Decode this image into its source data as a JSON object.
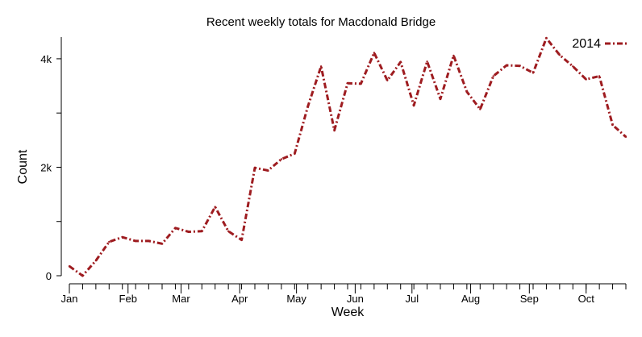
{
  "chart_data": {
    "type": "line",
    "title": "Recent weekly totals for Macdonald Bridge",
    "xlabel": "Week",
    "ylabel": "Count",
    "ylim": [
      0,
      4400
    ],
    "grid": false,
    "legend_position": "top-right",
    "x_tick_labels": [
      "Jan",
      "Feb",
      "Mar",
      "Apr",
      "May",
      "Jun",
      "Jul",
      "Aug",
      "Sep",
      "Oct"
    ],
    "y_ticks": [
      {
        "value": 0,
        "label": "0"
      },
      {
        "value": 1000,
        "label": ""
      },
      {
        "value": 2000,
        "label": "2k"
      },
      {
        "value": 3000,
        "label": ""
      },
      {
        "value": 4000,
        "label": "4k"
      }
    ],
    "x": [
      "2014-01-01",
      "2014-01-08",
      "2014-01-15",
      "2014-01-22",
      "2014-01-29",
      "2014-02-05",
      "2014-02-12",
      "2014-02-19",
      "2014-02-26",
      "2014-03-05",
      "2014-03-12",
      "2014-03-19",
      "2014-03-26",
      "2014-04-02",
      "2014-04-09",
      "2014-04-16",
      "2014-04-23",
      "2014-04-30",
      "2014-05-07",
      "2014-05-14",
      "2014-05-21",
      "2014-05-28",
      "2014-06-04",
      "2014-06-11",
      "2014-06-18",
      "2014-06-25",
      "2014-07-02",
      "2014-07-09",
      "2014-07-16",
      "2014-07-23",
      "2014-07-30",
      "2014-08-06",
      "2014-08-13",
      "2014-08-20",
      "2014-08-27",
      "2014-09-03",
      "2014-09-10",
      "2014-09-17",
      "2014-09-24",
      "2014-10-01",
      "2014-10-08",
      "2014-10-15",
      "2014-10-22"
    ],
    "series": [
      {
        "name": "2014",
        "color": "#9e1c20",
        "values": [
          175,
          0,
          280,
          625,
          710,
          640,
          640,
          590,
          880,
          810,
          820,
          1270,
          820,
          660,
          1990,
          1940,
          2150,
          2250,
          3120,
          3860,
          2680,
          3550,
          3540,
          4110,
          3600,
          3940,
          3140,
          3950,
          3260,
          4060,
          3390,
          3070,
          3680,
          3880,
          3870,
          3740,
          4380,
          4070,
          3860,
          3620,
          3680,
          2780,
          2560
        ]
      }
    ]
  }
}
